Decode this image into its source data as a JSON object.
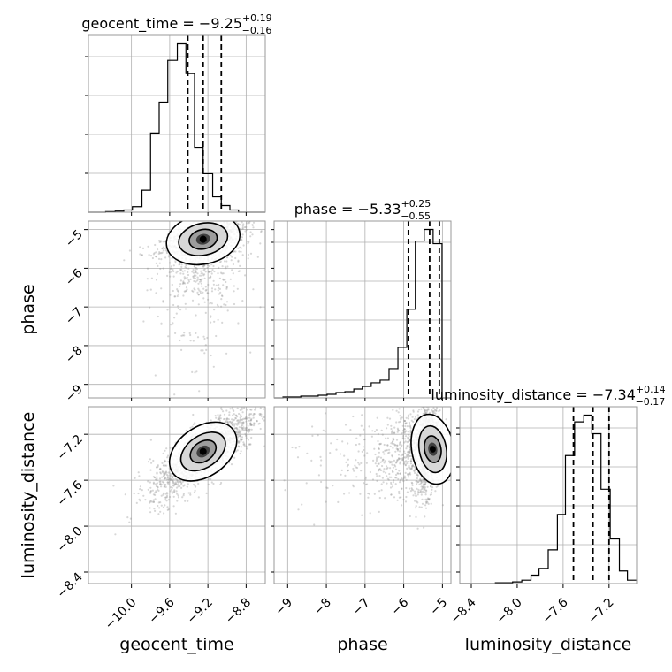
{
  "chart_data": {
    "type": "corner",
    "parameters": [
      "geocent_time",
      "phase",
      "luminosity_distance"
    ],
    "titles": [
      {
        "name": "geocent_time",
        "median": "−9.25",
        "plus": "+0.19",
        "minus": "−0.16"
      },
      {
        "name": "phase",
        "median": "−5.33",
        "plus": "+0.25",
        "minus": "−0.55"
      },
      {
        "name": "luminosity_distance",
        "median": "−7.34",
        "plus": "+0.14",
        "minus": "−0.17"
      }
    ],
    "axis_labels": {
      "x": [
        "geocent_time",
        "phase",
        "luminosity_distance"
      ],
      "y": [
        "phase",
        "luminosity_distance"
      ]
    },
    "ranges": {
      "geocent_time": [
        -10.45,
        -8.6
      ],
      "phase": [
        -9.35,
        -4.78
      ],
      "luminosity_distance": [
        -8.5,
        -6.96
      ]
    },
    "ticks": {
      "geocent_time": [
        "−10.0",
        "−9.6",
        "−9.2",
        "−8.8"
      ],
      "phase": [
        "−9",
        "−8",
        "−7",
        "−6",
        "−5"
      ],
      "luminosity_distance": [
        "−8.4",
        "−8.0",
        "−7.6",
        "−7.2"
      ]
    },
    "tick_values": {
      "geocent_time": [
        -10.0,
        -9.6,
        -9.2,
        -8.8
      ],
      "phase": [
        -9,
        -8,
        -7,
        -6,
        -5
      ],
      "luminosity_distance": [
        -8.4,
        -8.0,
        -7.6,
        -7.2
      ]
    },
    "quantiles": {
      "geocent_time": [
        -9.41,
        -9.25,
        -9.06
      ],
      "phase": [
        -5.88,
        -5.33,
        -5.08
      ],
      "luminosity_distance": [
        -7.51,
        -7.34,
        -7.2
      ]
    },
    "histograms": {
      "geocent_time": {
        "edges": [
          -10.45,
          -10.36,
          -10.27,
          -10.17,
          -10.08,
          -9.99,
          -9.89,
          -9.8,
          -9.71,
          -9.62,
          -9.52,
          -9.43,
          -9.34,
          -9.25,
          -9.15,
          -9.06,
          -8.97,
          -8.88,
          -8.78,
          -8.69,
          -8.6
        ],
        "counts": [
          0,
          0,
          0.5,
          1,
          2,
          5,
          20,
          72,
          100,
          138,
          153,
          126,
          59,
          35,
          14,
          6,
          2,
          0,
          0,
          0
        ]
      },
      "phase": {
        "edges": [
          -9.35,
          -9.12,
          -8.89,
          -8.66,
          -8.44,
          -8.21,
          -7.98,
          -7.75,
          -7.52,
          -7.29,
          -7.07,
          -6.84,
          -6.61,
          -6.38,
          -6.15,
          -5.92,
          -5.7,
          -5.47,
          -5.24,
          -5.01,
          -4.78
        ],
        "counts": [
          0,
          1,
          1,
          2,
          2,
          3,
          4,
          6,
          7,
          10,
          13,
          17,
          20,
          33,
          57,
          100,
          177,
          190,
          174,
          0
        ]
      },
      "luminosity_distance": {
        "edges": [
          -8.5,
          -8.42,
          -8.35,
          -8.27,
          -8.19,
          -8.12,
          -8.04,
          -7.96,
          -7.88,
          -7.81,
          -7.73,
          -7.65,
          -7.58,
          -7.5,
          -7.42,
          -7.35,
          -7.27,
          -7.19,
          -7.11,
          -7.04,
          -6.96
        ],
        "counts": [
          0,
          0,
          0,
          0,
          1,
          1,
          2,
          4,
          10,
          18,
          40,
          82,
          152,
          192,
          200,
          178,
          112,
          53,
          15,
          4
        ]
      }
    },
    "scatter_panels": [
      {
        "x": "geocent_time",
        "y": "phase",
        "peak": [
          -9.25,
          -5.25
        ],
        "type": "density-contour"
      },
      {
        "x": "geocent_time",
        "y": "luminosity_distance",
        "peak": [
          -9.25,
          -7.35
        ],
        "type": "density-contour"
      },
      {
        "x": "phase",
        "y": "luminosity_distance",
        "peak": [
          -5.25,
          -7.33
        ],
        "type": "density-contour"
      }
    ],
    "grid": true,
    "colors": {
      "line": "#000000",
      "points": "#8c8c8c",
      "grid": "#b0b0b0"
    }
  }
}
